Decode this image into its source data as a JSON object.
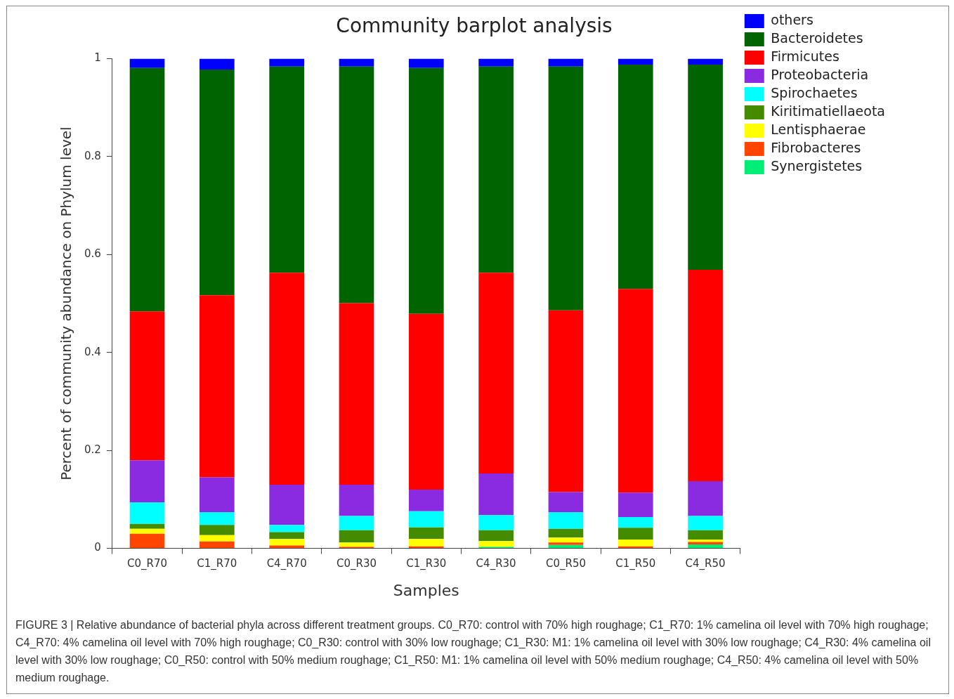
{
  "chart_data": {
    "type": "bar",
    "stacked": true,
    "title": "Community barplot analysis",
    "xlabel": "Samples",
    "ylabel": "Percent of community abundance on Phylum level",
    "categories": [
      "C0_R70",
      "C1_R70",
      "C4_R70",
      "C0_R30",
      "C1_R30",
      "C4_R30",
      "C0_R50",
      "C1_R50",
      "C4_R50"
    ],
    "ylim": [
      0,
      1
    ],
    "yticks": [
      0,
      0.2,
      0.4,
      0.6,
      0.8,
      1
    ],
    "grid": false,
    "legend": "right",
    "series": [
      {
        "name": "Synergistetes",
        "color": "#00ee76",
        "values": [
          0,
          0,
          0,
          0,
          0,
          0.003,
          0.007,
          0,
          0.008
        ]
      },
      {
        "name": "Fibrobacteres",
        "color": "#ff4500",
        "values": [
          0.03,
          0.014,
          0.006,
          0.003,
          0.004,
          0,
          0.005,
          0.004,
          0.005
        ]
      },
      {
        "name": "Lentisphaerae",
        "color": "#ffff00",
        "values": [
          0.01,
          0.013,
          0.013,
          0.009,
          0.015,
          0.012,
          0.01,
          0.014,
          0.005
        ]
      },
      {
        "name": "Kiritimatiellaeota",
        "color": "#458b00",
        "values": [
          0.01,
          0.021,
          0.014,
          0.025,
          0.024,
          0.022,
          0.018,
          0.024,
          0.019
        ]
      },
      {
        "name": "Spirochaetes",
        "color": "#00ffff",
        "values": [
          0.044,
          0.026,
          0.015,
          0.029,
          0.033,
          0.031,
          0.034,
          0.022,
          0.029
        ]
      },
      {
        "name": "Proteobacteria",
        "color": "#8a2be2",
        "values": [
          0.086,
          0.071,
          0.082,
          0.064,
          0.044,
          0.085,
          0.041,
          0.05,
          0.071
        ]
      },
      {
        "name": "Firmicutes",
        "color": "#ff0000",
        "values": [
          0.304,
          0.372,
          0.433,
          0.371,
          0.359,
          0.41,
          0.371,
          0.416,
          0.432
        ]
      },
      {
        "name": "Bacteroidetes",
        "color": "#006400",
        "values": [
          0.497,
          0.461,
          0.421,
          0.483,
          0.502,
          0.421,
          0.498,
          0.458,
          0.419
        ]
      },
      {
        "name": "others",
        "color": "#0000ff",
        "values": [
          0.019,
          0.022,
          0.016,
          0.016,
          0.019,
          0.016,
          0.016,
          0.012,
          0.012
        ]
      }
    ],
    "annotations": [
      "FIGURE 3 | Relative abundance of bacterial phyla across different treatment groups. C0_R70: control with 70% high roughage; C1_R70: 1% camelina oil level with 70% high roughage; C4_R70: 4% camelina oil level with 70% high roughage; C0_R30: control with 30% low roughage; C1_R30: M1: 1% camelina oil level with 30% low roughage; C4_R30: 4% camelina oil level with 30% low roughage; C0_R50: control with 50% medium roughage; C1_R50: M1: 1% camelina oil level with 50% medium roughage; C4_R50: 4% camelina oil level with 50% medium roughage."
    ]
  }
}
